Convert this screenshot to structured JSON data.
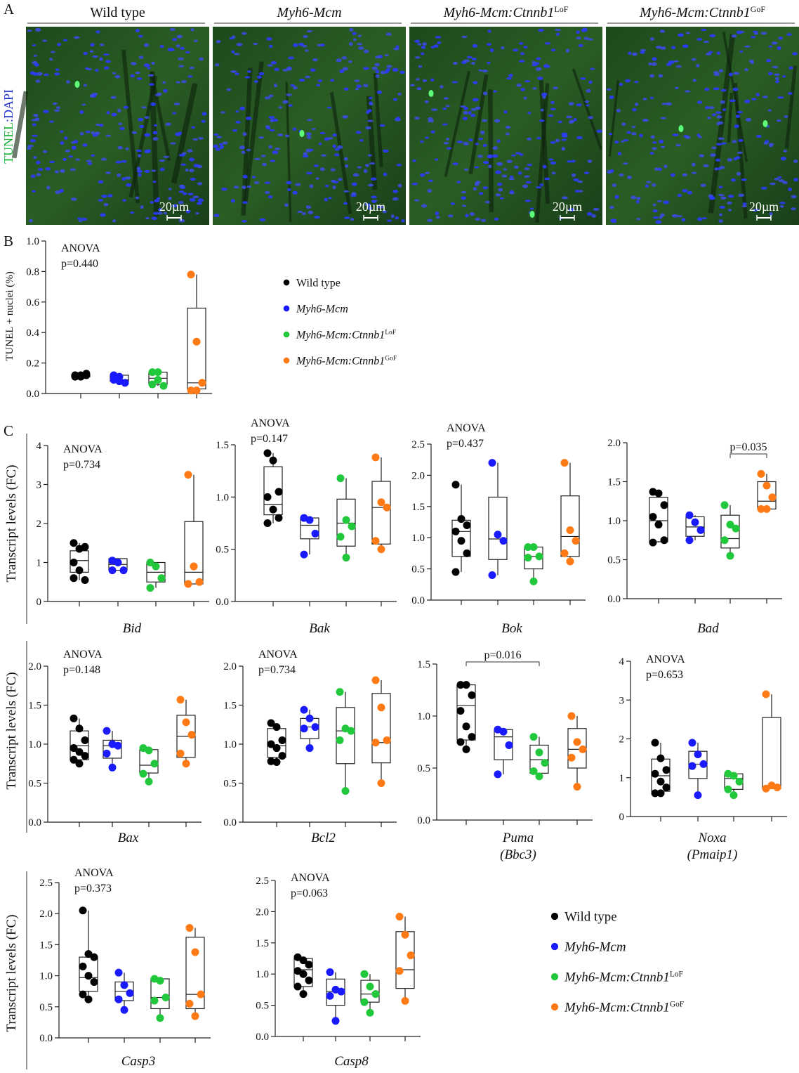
{
  "panel_labels": [
    "A",
    "B",
    "C"
  ],
  "groups": [
    {
      "name": "Wild type",
      "color": "#000000",
      "italic": false
    },
    {
      "name": "Myh6-Mcm",
      "color": "#1a1aff",
      "italic": true
    },
    {
      "name": "Myh6-Mcm:Ctnnb1",
      "sup": "LoF",
      "color": "#22c83c",
      "italic": true
    },
    {
      "name": "Myh6-Mcm:Ctnnb1",
      "sup": "GoF",
      "color": "#ff7a14",
      "italic": true
    }
  ],
  "micrographs": {
    "stain_label": [
      "TUNEL",
      ":DAPI"
    ],
    "scale_bars": [
      "20µm",
      "20µm",
      "20µm",
      "20µm"
    ]
  },
  "chart_data": [
    {
      "type": "box",
      "ylabel": "TUNEL + nuclei (%)",
      "annotation": [
        "ANOVA",
        "p=0.440"
      ],
      "legend": true,
      "ylim": [
        0,
        1
      ],
      "yticks": [
        {
          "value": 0,
          "label": "0.0"
        },
        0.2,
        0.4,
        0.6,
        0.8,
        {
          "value": 1,
          "label": "1.0"
        }
      ],
      "series": [
        {
          "points": [
            0.12,
            0.11,
            0.12,
            0.11,
            0.12,
            0.13
          ],
          "box": [
            0.1,
            0.11,
            0.12,
            0.12,
            0.13
          ]
        },
        {
          "points": [
            0.12,
            0.11,
            0.07,
            0.09,
            0.08
          ],
          "box": [
            0.07,
            0.08,
            0.09,
            0.12,
            0.12
          ]
        },
        {
          "points": [
            0.14,
            0.14,
            0.05,
            0.06,
            0.09
          ],
          "box": [
            0.05,
            0.06,
            0.1,
            0.14,
            0.15
          ]
        },
        {
          "points": [
            0.78,
            0.34,
            0.07,
            0.02,
            0.02
          ],
          "box": [
            0.01,
            0.03,
            0.07,
            0.56,
            0.78
          ]
        }
      ]
    },
    {
      "type": "box",
      "ylabel": "Transcript levels (FC)",
      "xlabel": [
        "Bid"
      ],
      "annotation": [
        "ANOVA",
        "p=0.734"
      ],
      "ylim": [
        0,
        4
      ],
      "yticks": [
        0,
        1,
        2,
        3,
        4
      ],
      "series": [
        {
          "points": [
            1.5,
            1.35,
            1.4,
            1.0,
            0.8,
            0.55,
            0.6
          ],
          "box": [
            0.55,
            0.75,
            1.05,
            1.3,
            1.5
          ]
        },
        {
          "points": [
            1.05,
            1.0,
            0.8,
            0.8
          ],
          "box": [
            0.8,
            0.8,
            0.95,
            1.1,
            1.1
          ]
        },
        {
          "points": [
            1.0,
            0.9,
            0.6,
            0.35
          ],
          "box": [
            0.35,
            0.5,
            0.75,
            1.0,
            1.0
          ]
        },
        {
          "points": [
            3.25,
            0.9,
            0.5,
            0.45
          ],
          "box": [
            0.45,
            0.45,
            0.75,
            2.05,
            3.25
          ]
        }
      ]
    },
    {
      "type": "box",
      "xlabel": [
        "Bak"
      ],
      "annotation": [
        "ANOVA",
        "p=0.147"
      ],
      "ylim": [
        0,
        1.5
      ],
      "yticks": [
        {
          "value": 0,
          "label": "0.0"
        },
        0.5,
        {
          "value": 1,
          "label": "1.0"
        },
        1.5
      ],
      "series": [
        {
          "points": [
            1.42,
            1.35,
            1.05,
            1.0,
            0.88,
            0.8,
            0.75
          ],
          "box": [
            0.75,
            0.83,
            0.93,
            1.29,
            1.42
          ]
        },
        {
          "points": [
            0.8,
            0.78,
            0.65,
            0.45
          ],
          "box": [
            0.45,
            0.6,
            0.73,
            0.8,
            0.8
          ]
        },
        {
          "points": [
            1.18,
            0.78,
            0.72,
            0.62,
            0.42
          ],
          "box": [
            0.42,
            0.53,
            0.75,
            0.98,
            1.18
          ]
        },
        {
          "points": [
            1.38,
            0.95,
            0.9,
            0.58,
            0.5
          ],
          "box": [
            0.5,
            0.55,
            0.9,
            1.15,
            1.38
          ]
        }
      ]
    },
    {
      "type": "box",
      "xlabel": [
        "Bok"
      ],
      "annotation": [
        "ANOVA",
        "p=0.437"
      ],
      "ylim": [
        0,
        2.5
      ],
      "yticks": [
        {
          "value": 0,
          "label": "0.0"
        },
        0.5,
        {
          "value": 1,
          "label": "1.0"
        },
        1.5,
        {
          "value": 2,
          "label": "2.0"
        },
        2.5
      ],
      "series": [
        {
          "points": [
            1.85,
            1.3,
            1.2,
            1.1,
            0.95,
            0.75,
            0.45
          ],
          "box": [
            0.45,
            0.7,
            1.1,
            1.28,
            1.85
          ]
        },
        {
          "points": [
            2.2,
            1.05,
            0.95,
            0.4
          ],
          "box": [
            0.4,
            0.65,
            0.98,
            1.65,
            2.2
          ]
        },
        {
          "points": [
            0.85,
            0.85,
            0.7,
            0.68,
            0.3
          ],
          "box": [
            0.3,
            0.5,
            0.7,
            0.85,
            0.85
          ]
        },
        {
          "points": [
            2.2,
            1.12,
            0.95,
            0.75,
            0.62
          ],
          "box": [
            0.62,
            0.7,
            1.02,
            1.67,
            2.2
          ]
        }
      ]
    },
    {
      "type": "box",
      "xlabel": [
        "Bad"
      ],
      "comparison": {
        "text": "p=0.035",
        "from": 2,
        "to": 3
      },
      "ylim": [
        0,
        2
      ],
      "yticks": [
        {
          "value": 0,
          "label": "0.0"
        },
        0.5,
        {
          "value": 1,
          "label": "1.0"
        },
        1.5,
        {
          "value": 2,
          "label": "2.0"
        }
      ],
      "series": [
        {
          "points": [
            1.37,
            1.35,
            1.2,
            1.05,
            0.95,
            0.75,
            0.72
          ],
          "box": [
            0.72,
            0.73,
            1.0,
            1.3,
            1.37
          ]
        },
        {
          "points": [
            1.07,
            0.98,
            0.88,
            0.75
          ],
          "box": [
            0.75,
            0.8,
            0.92,
            1.05,
            1.07
          ]
        },
        {
          "points": [
            1.2,
            0.95,
            0.9,
            0.75,
            0.55
          ],
          "box": [
            0.55,
            0.65,
            0.77,
            1.07,
            1.2
          ]
        },
        {
          "points": [
            1.6,
            1.45,
            1.3,
            1.15,
            1.15
          ],
          "box": [
            1.15,
            1.15,
            1.25,
            1.5,
            1.6
          ]
        }
      ]
    },
    {
      "type": "box",
      "ylabel": "Transcript levels (FC)",
      "xlabel": [
        "Bax"
      ],
      "annotation": [
        "ANOVA",
        "p=0.148"
      ],
      "ylim": [
        0,
        2
      ],
      "yticks": [
        {
          "value": 0,
          "label": "0.0"
        },
        0.5,
        {
          "value": 1,
          "label": "1.0"
        },
        1.5,
        {
          "value": 2,
          "label": "2.0"
        }
      ],
      "series": [
        {
          "points": [
            1.33,
            1.2,
            1.05,
            0.95,
            0.9,
            0.85,
            0.8,
            0.75
          ],
          "box": [
            0.75,
            0.8,
            0.98,
            1.17,
            1.33
          ]
        },
        {
          "points": [
            1.17,
            1.0,
            0.98,
            0.88,
            0.7
          ],
          "box": [
            0.7,
            0.82,
            0.98,
            1.05,
            1.17
          ]
        },
        {
          "points": [
            0.95,
            0.92,
            0.75,
            0.62,
            0.52
          ],
          "box": [
            0.52,
            0.63,
            0.73,
            0.93,
            0.95
          ]
        },
        {
          "points": [
            1.57,
            1.28,
            1.12,
            0.88,
            0.75
          ],
          "box": [
            0.75,
            0.83,
            1.1,
            1.37,
            1.57
          ]
        }
      ]
    },
    {
      "type": "box",
      "xlabel": [
        "Bcl2"
      ],
      "annotation": [
        "ANOVA",
        "p=0.734"
      ],
      "ylim": [
        0,
        2
      ],
      "yticks": [
        {
          "value": 0,
          "label": "0.0"
        },
        0.5,
        {
          "value": 1,
          "label": "1.0"
        },
        1.5,
        {
          "value": 2,
          "label": "2.0"
        }
      ],
      "series": [
        {
          "points": [
            1.27,
            1.22,
            1.05,
            1.0,
            0.95,
            0.85,
            0.78,
            0.77
          ],
          "box": [
            0.77,
            0.83,
            0.98,
            1.2,
            1.27
          ]
        },
        {
          "points": [
            1.44,
            1.33,
            1.22,
            1.2,
            0.95
          ],
          "box": [
            0.95,
            1.07,
            1.22,
            1.33,
            1.44
          ]
        },
        {
          "points": [
            1.67,
            1.2,
            1.17,
            1.05,
            0.4
          ],
          "box": [
            0.4,
            0.75,
            1.17,
            1.47,
            1.67
          ]
        },
        {
          "points": [
            1.82,
            1.47,
            1.05,
            1.02,
            0.5
          ],
          "box": [
            0.5,
            0.76,
            1.02,
            1.65,
            1.82
          ]
        }
      ]
    },
    {
      "type": "box",
      "xlabel": [
        "Puma",
        "(Bbc3)"
      ],
      "comparison": {
        "text": "p=0.016",
        "from": 0,
        "to": 2
      },
      "ylim": [
        0,
        1.5
      ],
      "yticks": [
        {
          "value": 0,
          "label": "0.0"
        },
        0.5,
        {
          "value": 1,
          "label": "1.0"
        },
        1.5
      ],
      "series": [
        {
          "points": [
            1.3,
            1.3,
            1.2,
            1.05,
            0.9,
            0.8,
            0.75,
            0.68
          ],
          "box": [
            0.68,
            0.77,
            1.1,
            1.3,
            1.32
          ]
        },
        {
          "points": [
            0.87,
            0.85,
            0.72,
            0.44
          ],
          "box": [
            0.44,
            0.58,
            0.8,
            0.87,
            0.87
          ]
        },
        {
          "points": [
            0.8,
            0.65,
            0.55,
            0.47,
            0.42
          ],
          "box": [
            0.42,
            0.45,
            0.58,
            0.72,
            0.8
          ]
        },
        {
          "points": [
            1.0,
            0.75,
            0.68,
            0.6,
            0.32
          ],
          "box": [
            0.32,
            0.5,
            0.68,
            0.88,
            1.0
          ]
        }
      ]
    },
    {
      "type": "box",
      "xlabel": [
        "Noxa",
        "(Pmaip1)"
      ],
      "annotation": [
        "ANOVA",
        "p=0.653"
      ],
      "ylim": [
        0,
        4
      ],
      "yticks": [
        0,
        1,
        2,
        3,
        4
      ],
      "series": [
        {
          "points": [
            1.9,
            1.5,
            1.2,
            1.1,
            0.9,
            0.75,
            0.6,
            0.6
          ],
          "box": [
            0.6,
            0.65,
            1.05,
            1.48,
            1.9
          ]
        },
        {
          "points": [
            1.9,
            1.6,
            1.35,
            1.3,
            0.55
          ],
          "box": [
            0.55,
            0.98,
            1.35,
            1.68,
            1.9
          ]
        },
        {
          "points": [
            1.1,
            1.05,
            0.9,
            0.7,
            0.55
          ],
          "box": [
            0.55,
            0.7,
            0.98,
            1.1,
            1.1
          ]
        },
        {
          "points": [
            3.15,
            0.8,
            0.75,
            0.72
          ],
          "box": [
            0.72,
            0.72,
            0.75,
            2.55,
            3.15
          ]
        }
      ]
    },
    {
      "type": "box",
      "ylabel": "Transcript levels (FC)",
      "xlabel": [
        "Casp3"
      ],
      "annotation": [
        "ANOVA",
        "p=0.373"
      ],
      "ylim": [
        0,
        2.5
      ],
      "yticks": [
        {
          "value": 0,
          "label": "0.0"
        },
        0.5,
        {
          "value": 1,
          "label": "1.0"
        },
        1.5,
        {
          "value": 2,
          "label": "2.0"
        },
        2.5
      ],
      "series": [
        {
          "points": [
            2.05,
            1.35,
            1.3,
            1.15,
            1.0,
            0.9,
            0.7,
            0.62
          ],
          "box": [
            0.62,
            0.75,
            0.97,
            1.3,
            2.05
          ]
        },
        {
          "points": [
            1.05,
            0.85,
            0.72,
            0.62,
            0.45
          ],
          "box": [
            0.45,
            0.6,
            0.75,
            0.9,
            1.05
          ]
        },
        {
          "points": [
            0.95,
            0.92,
            0.65,
            0.6,
            0.32
          ],
          "box": [
            0.32,
            0.47,
            0.65,
            0.95,
            0.95
          ]
        },
        {
          "points": [
            1.77,
            1.38,
            0.7,
            0.55,
            0.35
          ],
          "box": [
            0.35,
            0.47,
            0.7,
            1.62,
            1.77
          ]
        }
      ]
    },
    {
      "type": "box",
      "xlabel": [
        "Casp8"
      ],
      "annotation": [
        "ANOVA",
        "p=0.063"
      ],
      "legend": true,
      "ylim": [
        0,
        2.5
      ],
      "yticks": [
        {
          "value": 0,
          "label": "0.0"
        },
        0.5,
        {
          "value": 1,
          "label": "1.0"
        },
        1.5,
        {
          "value": 2,
          "label": "2.0"
        },
        2.5
      ],
      "series": [
        {
          "points": [
            1.27,
            1.22,
            1.15,
            1.05,
            1.0,
            0.9,
            0.8,
            0.68
          ],
          "box": [
            0.68,
            0.8,
            1.07,
            1.25,
            1.27
          ]
        },
        {
          "points": [
            1.03,
            0.75,
            0.72,
            0.65,
            0.25
          ],
          "box": [
            0.25,
            0.5,
            0.72,
            0.92,
            1.03
          ]
        },
        {
          "points": [
            1.0,
            0.8,
            0.68,
            0.55,
            0.38
          ],
          "box": [
            0.38,
            0.55,
            0.68,
            0.9,
            1.0
          ]
        },
        {
          "points": [
            1.92,
            1.63,
            1.3,
            1.05,
            0.57
          ],
          "box": [
            0.57,
            0.77,
            1.07,
            1.68,
            1.92
          ]
        }
      ]
    }
  ]
}
